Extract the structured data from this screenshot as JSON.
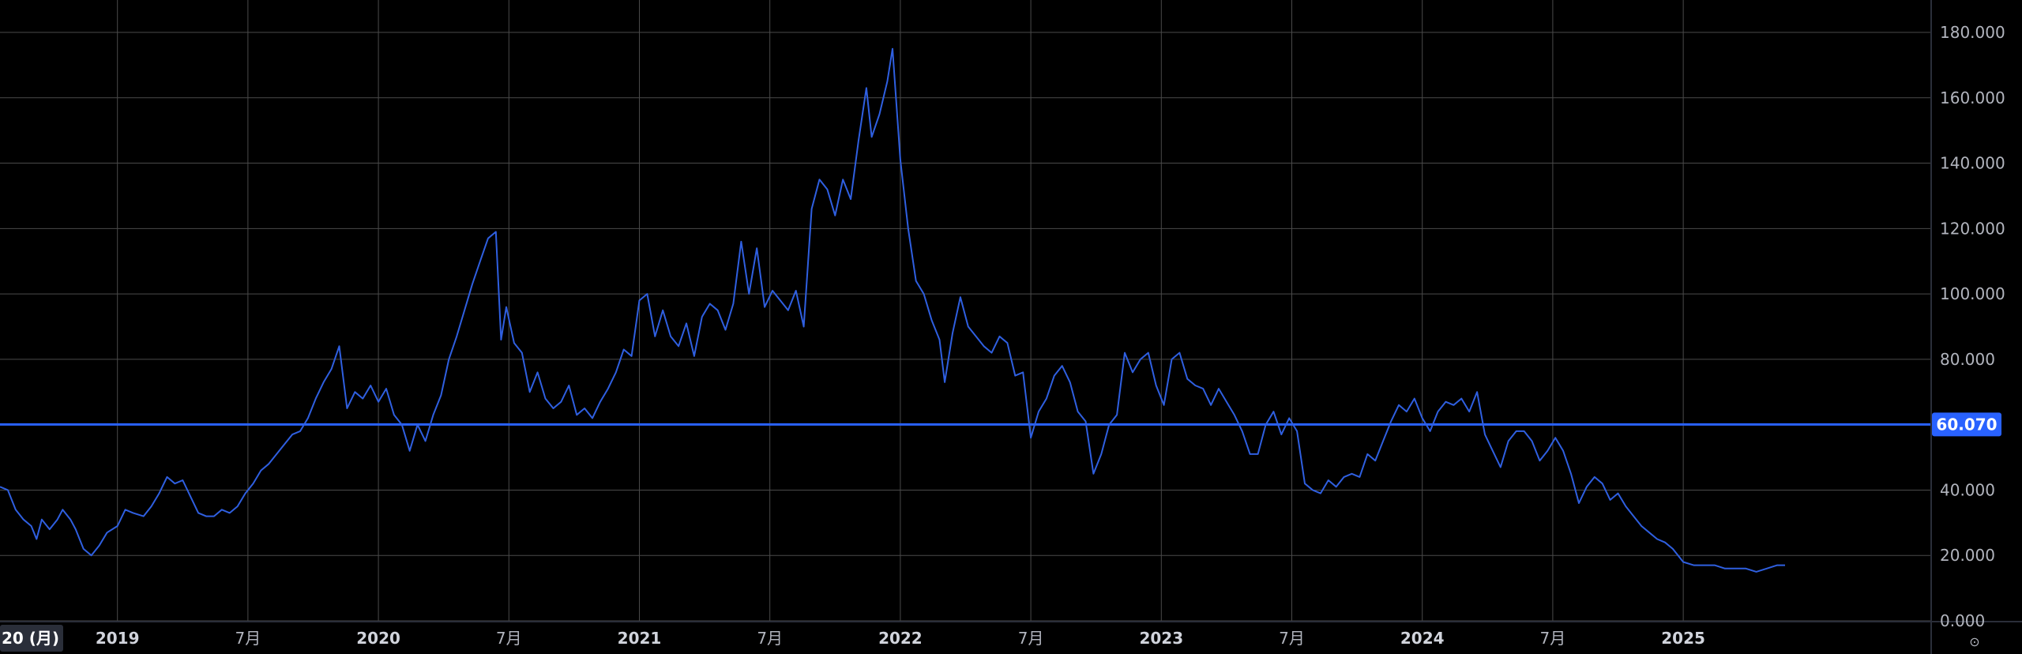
{
  "colors": {
    "background": "#000000",
    "grid": "#4a4a4a",
    "axis_text": "#b2b5be",
    "series_line": "#2f5fe0",
    "price_line": "#2962ff",
    "price_label_bg": "#2962ff",
    "crosshair_label_bg": "#2a2e39"
  },
  "icons": {
    "settings": "settings-icon"
  },
  "settings_glyph": "⊙",
  "crosshair_date_label": "20 (月)",
  "price_label": "60.070",
  "chart_data": {
    "type": "line",
    "ylim": [
      0,
      190
    ],
    "xlim": [
      2018.55,
      2025.95
    ],
    "grid": true,
    "y_ticks": [
      {
        "value": 0,
        "label": "0.000"
      },
      {
        "value": 20,
        "label": "20.000"
      },
      {
        "value": 40,
        "label": "40.000"
      },
      {
        "value": 60,
        "label": "60.000"
      },
      {
        "value": 80,
        "label": "80.000"
      },
      {
        "value": 100,
        "label": "100.000"
      },
      {
        "value": 120,
        "label": "120.000"
      },
      {
        "value": 140,
        "label": "140.000"
      },
      {
        "value": 160,
        "label": "160.000"
      },
      {
        "value": 180,
        "label": "180.000"
      }
    ],
    "x_ticks": [
      {
        "value": 2019.0,
        "label": "2019",
        "bold": true
      },
      {
        "value": 2019.5,
        "label": "7月",
        "bold": false
      },
      {
        "value": 2020.0,
        "label": "2020",
        "bold": true
      },
      {
        "value": 2020.5,
        "label": "7月",
        "bold": false
      },
      {
        "value": 2021.0,
        "label": "2021",
        "bold": true
      },
      {
        "value": 2021.5,
        "label": "7月",
        "bold": false
      },
      {
        "value": 2022.0,
        "label": "2022",
        "bold": true
      },
      {
        "value": 2022.5,
        "label": "7月",
        "bold": false
      },
      {
        "value": 2023.0,
        "label": "2023",
        "bold": true
      },
      {
        "value": 2023.5,
        "label": "7月",
        "bold": false
      },
      {
        "value": 2024.0,
        "label": "2024",
        "bold": true
      },
      {
        "value": 2024.5,
        "label": "7月",
        "bold": false
      },
      {
        "value": 2025.0,
        "label": "2025",
        "bold": true
      }
    ],
    "horizontal_line": {
      "value": 60.07,
      "label": "60.070"
    },
    "series": [
      {
        "points": [
          [
            2018.55,
            41
          ],
          [
            2018.58,
            40
          ],
          [
            2018.61,
            34
          ],
          [
            2018.64,
            31
          ],
          [
            2018.67,
            29
          ],
          [
            2018.69,
            25
          ],
          [
            2018.71,
            31
          ],
          [
            2018.74,
            28
          ],
          [
            2018.77,
            31
          ],
          [
            2018.79,
            34
          ],
          [
            2018.82,
            31
          ],
          [
            2018.84,
            28
          ],
          [
            2018.87,
            22
          ],
          [
            2018.9,
            20
          ],
          [
            2018.93,
            23
          ],
          [
            2018.96,
            27
          ],
          [
            2019.0,
            29
          ],
          [
            2019.03,
            34
          ],
          [
            2019.06,
            33
          ],
          [
            2019.1,
            32
          ],
          [
            2019.13,
            35
          ],
          [
            2019.16,
            39
          ],
          [
            2019.19,
            44
          ],
          [
            2019.22,
            42
          ],
          [
            2019.25,
            43
          ],
          [
            2019.28,
            38
          ],
          [
            2019.31,
            33
          ],
          [
            2019.34,
            32
          ],
          [
            2019.37,
            32
          ],
          [
            2019.4,
            34
          ],
          [
            2019.43,
            33
          ],
          [
            2019.46,
            35
          ],
          [
            2019.49,
            39
          ],
          [
            2019.52,
            42
          ],
          [
            2019.55,
            46
          ],
          [
            2019.58,
            48
          ],
          [
            2019.61,
            51
          ],
          [
            2019.64,
            54
          ],
          [
            2019.67,
            57
          ],
          [
            2019.7,
            58
          ],
          [
            2019.73,
            62
          ],
          [
            2019.76,
            68
          ],
          [
            2019.79,
            73
          ],
          [
            2019.82,
            77
          ],
          [
            2019.85,
            84
          ],
          [
            2019.88,
            65
          ],
          [
            2019.91,
            70
          ],
          [
            2019.94,
            68
          ],
          [
            2019.97,
            72
          ],
          [
            2020.0,
            67
          ],
          [
            2020.03,
            71
          ],
          [
            2020.06,
            63
          ],
          [
            2020.09,
            60
          ],
          [
            2020.12,
            52
          ],
          [
            2020.15,
            60
          ],
          [
            2020.18,
            55
          ],
          [
            2020.21,
            63
          ],
          [
            2020.24,
            69
          ],
          [
            2020.27,
            80
          ],
          [
            2020.3,
            87
          ],
          [
            2020.33,
            95
          ],
          [
            2020.36,
            103
          ],
          [
            2020.39,
            110
          ],
          [
            2020.42,
            117
          ],
          [
            2020.45,
            119
          ],
          [
            2020.47,
            86
          ],
          [
            2020.49,
            96
          ],
          [
            2020.52,
            85
          ],
          [
            2020.55,
            82
          ],
          [
            2020.58,
            70
          ],
          [
            2020.61,
            76
          ],
          [
            2020.64,
            68
          ],
          [
            2020.67,
            65
          ],
          [
            2020.7,
            67
          ],
          [
            2020.73,
            72
          ],
          [
            2020.76,
            63
          ],
          [
            2020.79,
            65
          ],
          [
            2020.82,
            62
          ],
          [
            2020.85,
            67
          ],
          [
            2020.88,
            71
          ],
          [
            2020.91,
            76
          ],
          [
            2020.94,
            83
          ],
          [
            2020.97,
            81
          ],
          [
            2021.0,
            98
          ],
          [
            2021.03,
            100
          ],
          [
            2021.06,
            87
          ],
          [
            2021.09,
            95
          ],
          [
            2021.12,
            87
          ],
          [
            2021.15,
            84
          ],
          [
            2021.18,
            91
          ],
          [
            2021.21,
            81
          ],
          [
            2021.24,
            93
          ],
          [
            2021.27,
            97
          ],
          [
            2021.3,
            95
          ],
          [
            2021.33,
            89
          ],
          [
            2021.36,
            97
          ],
          [
            2021.39,
            116
          ],
          [
            2021.42,
            100
          ],
          [
            2021.45,
            114
          ],
          [
            2021.48,
            96
          ],
          [
            2021.51,
            101
          ],
          [
            2021.54,
            98
          ],
          [
            2021.57,
            95
          ],
          [
            2021.6,
            101
          ],
          [
            2021.63,
            90
          ],
          [
            2021.66,
            126
          ],
          [
            2021.69,
            135
          ],
          [
            2021.72,
            132
          ],
          [
            2021.75,
            124
          ],
          [
            2021.78,
            135
          ],
          [
            2021.81,
            129
          ],
          [
            2021.84,
            147
          ],
          [
            2021.87,
            163
          ],
          [
            2021.89,
            148
          ],
          [
            2021.92,
            155
          ],
          [
            2021.95,
            165
          ],
          [
            2021.97,
            175
          ],
          [
            2022.0,
            141
          ],
          [
            2022.03,
            120
          ],
          [
            2022.06,
            104
          ],
          [
            2022.09,
            100
          ],
          [
            2022.12,
            92
          ],
          [
            2022.15,
            86
          ],
          [
            2022.17,
            73
          ],
          [
            2022.2,
            88
          ],
          [
            2022.23,
            99
          ],
          [
            2022.26,
            90
          ],
          [
            2022.29,
            87
          ],
          [
            2022.32,
            84
          ],
          [
            2022.35,
            82
          ],
          [
            2022.38,
            87
          ],
          [
            2022.41,
            85
          ],
          [
            2022.44,
            75
          ],
          [
            2022.47,
            76
          ],
          [
            2022.5,
            56
          ],
          [
            2022.53,
            64
          ],
          [
            2022.56,
            68
          ],
          [
            2022.59,
            75
          ],
          [
            2022.62,
            78
          ],
          [
            2022.65,
            73
          ],
          [
            2022.68,
            64
          ],
          [
            2022.71,
            61
          ],
          [
            2022.74,
            45
          ],
          [
            2022.77,
            51
          ],
          [
            2022.8,
            60
          ],
          [
            2022.83,
            63
          ],
          [
            2022.86,
            82
          ],
          [
            2022.89,
            76
          ],
          [
            2022.92,
            80
          ],
          [
            2022.95,
            82
          ],
          [
            2022.98,
            72
          ],
          [
            2023.01,
            66
          ],
          [
            2023.04,
            80
          ],
          [
            2023.07,
            82
          ],
          [
            2023.1,
            74
          ],
          [
            2023.13,
            72
          ],
          [
            2023.16,
            71
          ],
          [
            2023.19,
            66
          ],
          [
            2023.22,
            71
          ],
          [
            2023.25,
            67
          ],
          [
            2023.28,
            63
          ],
          [
            2023.31,
            58
          ],
          [
            2023.34,
            51
          ],
          [
            2023.37,
            51
          ],
          [
            2023.4,
            60
          ],
          [
            2023.43,
            64
          ],
          [
            2023.46,
            57
          ],
          [
            2023.49,
            62
          ],
          [
            2023.52,
            58
          ],
          [
            2023.55,
            42
          ],
          [
            2023.58,
            40
          ],
          [
            2023.61,
            39
          ],
          [
            2023.64,
            43
          ],
          [
            2023.67,
            41
          ],
          [
            2023.7,
            44
          ],
          [
            2023.73,
            45
          ],
          [
            2023.76,
            44
          ],
          [
            2023.79,
            51
          ],
          [
            2023.82,
            49
          ],
          [
            2023.85,
            55
          ],
          [
            2023.88,
            61
          ],
          [
            2023.91,
            66
          ],
          [
            2023.94,
            64
          ],
          [
            2023.97,
            68
          ],
          [
            2024.0,
            62
          ],
          [
            2024.03,
            58
          ],
          [
            2024.06,
            64
          ],
          [
            2024.09,
            67
          ],
          [
            2024.12,
            66
          ],
          [
            2024.15,
            68
          ],
          [
            2024.18,
            64
          ],
          [
            2024.21,
            70
          ],
          [
            2024.24,
            57
          ],
          [
            2024.27,
            52
          ],
          [
            2024.3,
            47
          ],
          [
            2024.33,
            55
          ],
          [
            2024.36,
            58
          ],
          [
            2024.39,
            58
          ],
          [
            2024.42,
            55
          ],
          [
            2024.45,
            49
          ],
          [
            2024.48,
            52
          ],
          [
            2024.51,
            56
          ],
          [
            2024.54,
            52
          ],
          [
            2024.57,
            45
          ],
          [
            2024.6,
            36
          ],
          [
            2024.63,
            41
          ],
          [
            2024.66,
            44
          ],
          [
            2024.69,
            42
          ],
          [
            2024.72,
            37
          ],
          [
            2024.75,
            39
          ],
          [
            2024.78,
            35
          ],
          [
            2024.81,
            32
          ],
          [
            2024.84,
            29
          ],
          [
            2024.87,
            27
          ],
          [
            2024.9,
            25
          ],
          [
            2024.93,
            24
          ],
          [
            2024.96,
            22
          ],
          [
            2025.0,
            18
          ],
          [
            2025.04,
            17
          ],
          [
            2025.08,
            17
          ],
          [
            2025.12,
            17
          ],
          [
            2025.16,
            16
          ],
          [
            2025.2,
            16
          ],
          [
            2025.24,
            16
          ],
          [
            2025.28,
            15
          ],
          [
            2025.32,
            16
          ],
          [
            2025.36,
            17
          ],
          [
            2025.39,
            17
          ]
        ]
      }
    ]
  }
}
